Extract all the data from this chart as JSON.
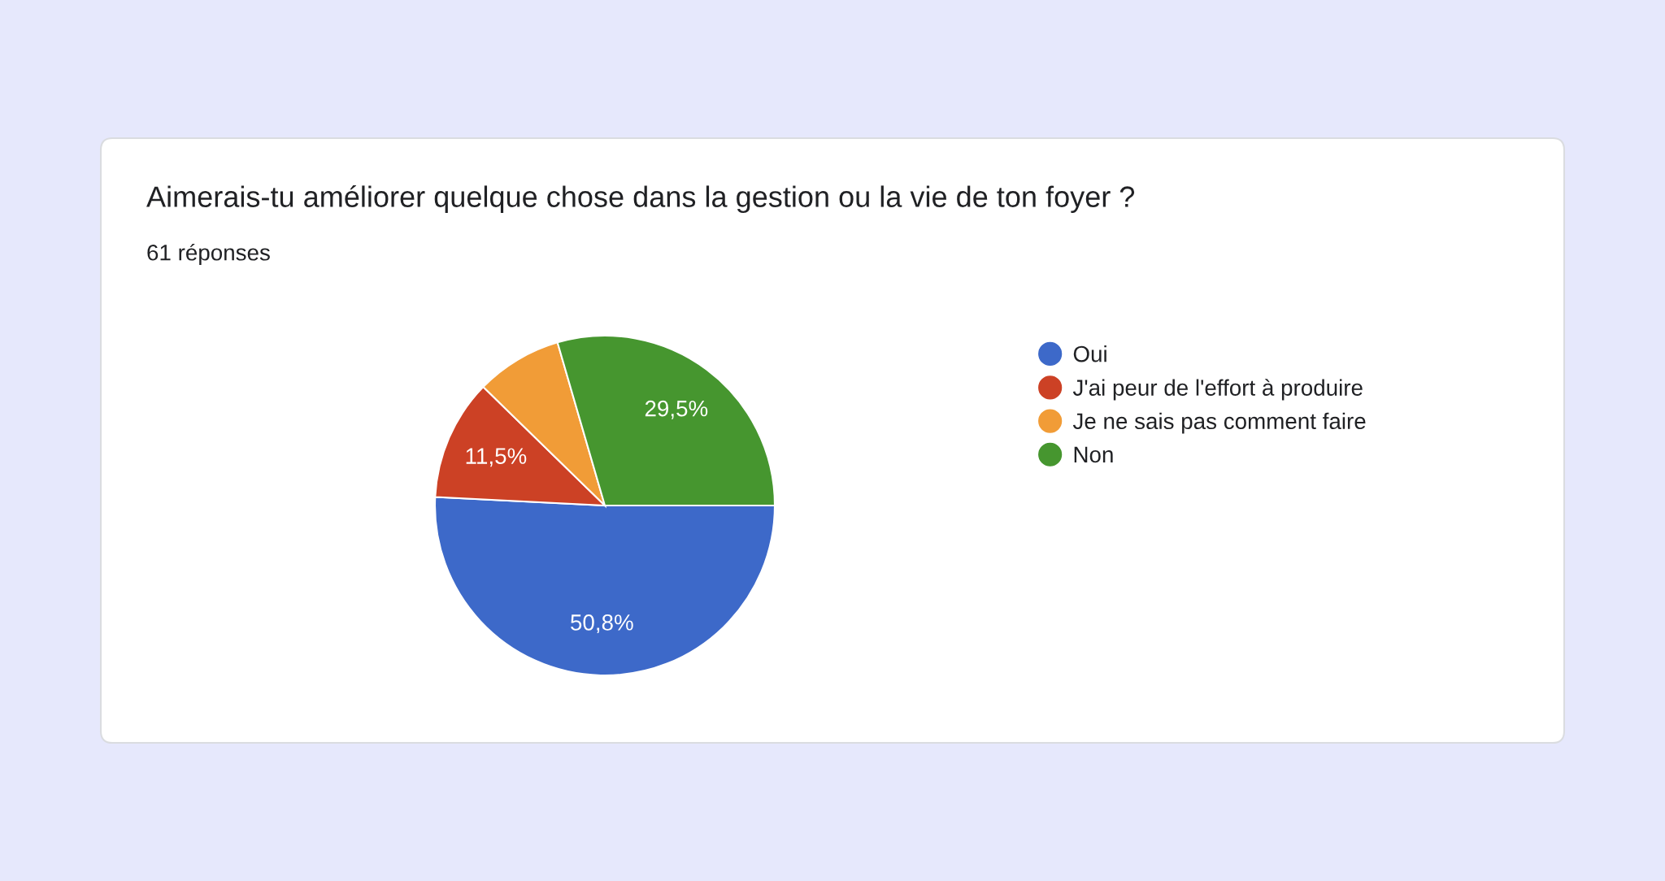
{
  "chart_data": {
    "type": "pie",
    "title": "Aimerais-tu améliorer quelque chose dans la gestion ou la vie de ton foyer ?",
    "subtitle": "61 réponses",
    "categories": [
      "Oui",
      "J'ai peur de l'effort à produire",
      "Je ne sais pas comment faire",
      "Non"
    ],
    "values": [
      50.8,
      11.5,
      8.2,
      29.5
    ],
    "colors": [
      "#3d69c9",
      "#cc4125",
      "#f19c37",
      "#46962f"
    ],
    "value_labels": [
      "50,8%",
      "11,5%",
      null,
      "29,5%"
    ],
    "legend": "right"
  }
}
